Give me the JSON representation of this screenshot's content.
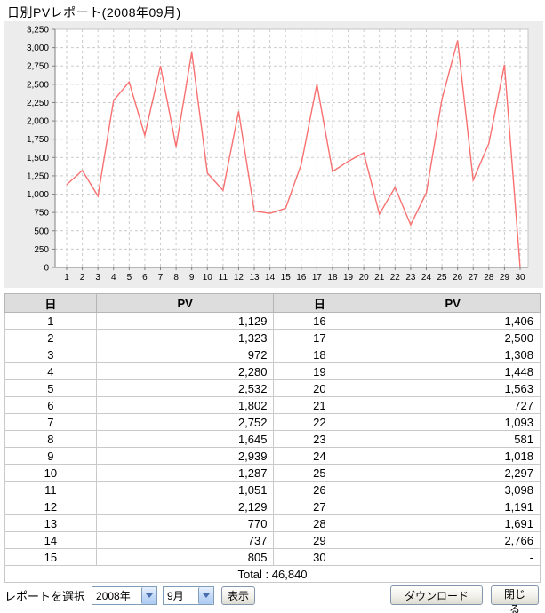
{
  "page": {
    "title": "日別PVレポート(2008年09月)"
  },
  "chart_data": {
    "type": "line",
    "title": "日別PVレポート(2008年09月)",
    "x": [
      1,
      2,
      3,
      4,
      5,
      6,
      7,
      8,
      9,
      10,
      11,
      12,
      13,
      14,
      15,
      16,
      17,
      18,
      19,
      20,
      21,
      22,
      23,
      24,
      25,
      26,
      27,
      28,
      29,
      30
    ],
    "values": [
      1129,
      1323,
      972,
      2280,
      2532,
      1802,
      2752,
      1645,
      2939,
      1287,
      1051,
      2129,
      770,
      737,
      805,
      1406,
      2500,
      1308,
      1448,
      1563,
      727,
      1093,
      581,
      1018,
      2297,
      3098,
      1191,
      1691,
      2766,
      0
    ],
    "xlabel": "",
    "ylabel": "",
    "ylim": [
      0,
      3250
    ],
    "ytick_step": 250,
    "grid": true,
    "legend": false,
    "line_color": "#F87070",
    "grid_color": "#CCCCCC",
    "axis_color": "#808080",
    "plot_bg": "#FFFFFF",
    "panel_bg": "#ECECEC"
  },
  "table": {
    "headers": [
      "日",
      "PV",
      "日",
      "PV"
    ],
    "rows": [
      [
        "1",
        "1,129",
        "16",
        "1,406"
      ],
      [
        "2",
        "1,323",
        "17",
        "2,500"
      ],
      [
        "3",
        "972",
        "18",
        "1,308"
      ],
      [
        "4",
        "2,280",
        "19",
        "1,448"
      ],
      [
        "5",
        "2,532",
        "20",
        "1,563"
      ],
      [
        "6",
        "1,802",
        "21",
        "727"
      ],
      [
        "7",
        "2,752",
        "22",
        "1,093"
      ],
      [
        "8",
        "1,645",
        "23",
        "581"
      ],
      [
        "9",
        "2,939",
        "24",
        "1,018"
      ],
      [
        "10",
        "1,287",
        "25",
        "2,297"
      ],
      [
        "11",
        "1,051",
        "26",
        "3,098"
      ],
      [
        "12",
        "2,129",
        "27",
        "1,191"
      ],
      [
        "13",
        "770",
        "28",
        "1,691"
      ],
      [
        "14",
        "737",
        "29",
        "2,766"
      ],
      [
        "15",
        "805",
        "30",
        "-"
      ]
    ],
    "total_label": "Total : 46,840"
  },
  "footer": {
    "select_label": "レポートを選択",
    "year_value": "2008年",
    "month_value": "9月",
    "show_button": "表示",
    "download_button": "ダウンロード",
    "close_button": "閉じる"
  }
}
